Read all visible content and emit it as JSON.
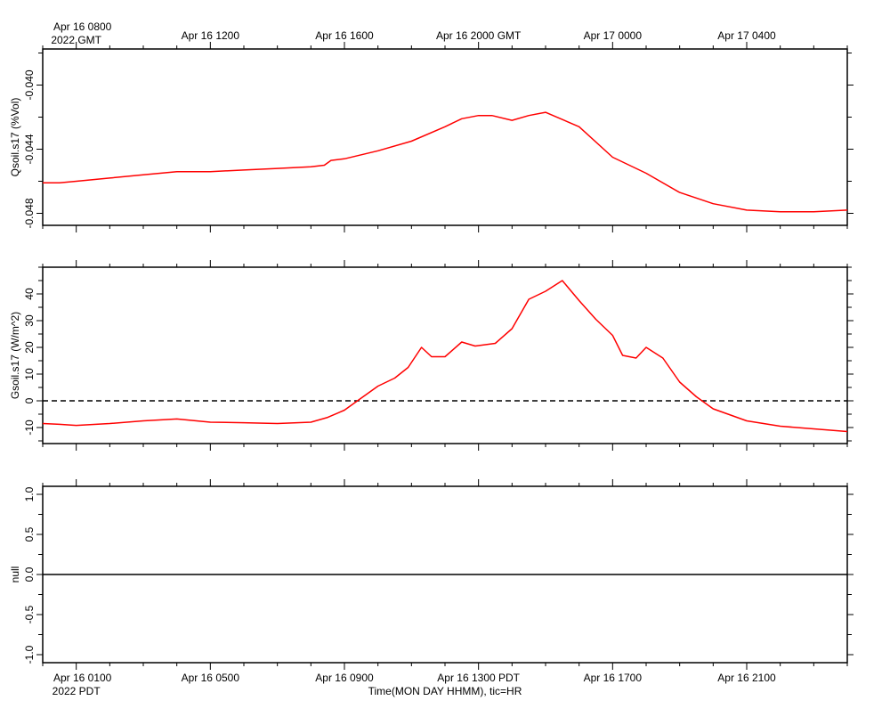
{
  "top_axis": {
    "first_label_line1": "Apr 16 0800",
    "first_label_line2": "2022 GMT",
    "labels": [
      {
        "x": 8,
        "text": "Apr 16 0800"
      },
      {
        "x": 12,
        "text": "Apr 16 1200"
      },
      {
        "x": 16,
        "text": "Apr 16 1600"
      },
      {
        "x": 20,
        "text": "Apr 16 2000 GMT"
      },
      {
        "x": 24,
        "text": "Apr 17 0000"
      },
      {
        "x": 28,
        "text": "Apr 17 0400"
      }
    ]
  },
  "bottom_axis": {
    "first_label_line1": "Apr 16 0100",
    "first_label_line2": "2022 PDT",
    "xlabel": "Time(MON DAY HHMM), tic=HR",
    "labels": [
      {
        "x": 8,
        "text": "Apr 16 0100"
      },
      {
        "x": 12,
        "text": "Apr 16 0500"
      },
      {
        "x": 16,
        "text": "Apr 16 0900"
      },
      {
        "x": 20,
        "text": "Apr 16 1300 PDT"
      },
      {
        "x": 24,
        "text": "Apr 16 1700"
      },
      {
        "x": 28,
        "text": "Apr 16 2100"
      }
    ]
  },
  "colors": {
    "series": "#ff0000",
    "axis": "#000000",
    "zero_line": "#000000"
  },
  "chart_data": [
    {
      "type": "line",
      "title": "",
      "ylabel": "Qsoil.s17 (%Vol)",
      "xlabel": "",
      "x_units": "hour GMT since Apr 16 0000",
      "xlim": [
        7,
        31
      ],
      "ylim": [
        -0.04875,
        -0.03775
      ],
      "yticks": [
        -0.048,
        -0.044,
        -0.04
      ],
      "ytick_labels": [
        "-0.048",
        "-0.044",
        "-0.040"
      ],
      "zero_line": false,
      "series": [
        {
          "x": [
            7,
            7.5,
            8,
            9,
            10,
            11,
            12,
            13,
            14,
            15,
            15.4,
            15.6,
            16,
            17,
            18,
            19,
            19.5,
            20,
            20.4,
            21,
            21.5,
            22,
            23,
            24,
            25,
            26,
            27,
            28,
            29,
            30,
            31
          ],
          "y": [
            -0.0461,
            -0.0461,
            -0.046,
            -0.0458,
            -0.0456,
            -0.0454,
            -0.0454,
            -0.0453,
            -0.0452,
            -0.0451,
            -0.045,
            -0.0447,
            -0.0446,
            -0.0441,
            -0.0435,
            -0.0426,
            -0.0421,
            -0.0419,
            -0.0419,
            -0.0422,
            -0.0419,
            -0.0417,
            -0.0426,
            -0.0445,
            -0.0455,
            -0.0467,
            -0.0474,
            -0.0478,
            -0.0479,
            -0.0479,
            -0.0478
          ]
        }
      ]
    },
    {
      "type": "line",
      "title": "",
      "ylabel": "Gsoil.s17 (W/m^2)",
      "xlabel": "",
      "x_units": "hour GMT since Apr 16 0000",
      "xlim": [
        7,
        31
      ],
      "ylim": [
        -16,
        50
      ],
      "yticks": [
        -10,
        0,
        10,
        20,
        30,
        40
      ],
      "ytick_labels": [
        "-10",
        "0",
        "10",
        "20",
        "30",
        "40"
      ],
      "zero_line": true,
      "series": [
        {
          "x": [
            7,
            7.5,
            8,
            9,
            10,
            11,
            12,
            13,
            14,
            15,
            15.5,
            16,
            16.5,
            17,
            17.5,
            17.9,
            18.3,
            18.6,
            19,
            19.5,
            19.9,
            20.5,
            21,
            21.5,
            22,
            22.5,
            23,
            23.5,
            24,
            24.3,
            24.7,
            25,
            25.5,
            26,
            26.5,
            27,
            28,
            29,
            30,
            31
          ],
          "y": [
            -8.5,
            -8.8,
            -9.2,
            -8.5,
            -7.5,
            -6.8,
            -8.0,
            -8.2,
            -8.5,
            -8.0,
            -6.2,
            -3.5,
            1.0,
            5.5,
            8.5,
            12.5,
            20.0,
            16.5,
            16.5,
            22.0,
            20.5,
            21.5,
            27.0,
            38.0,
            41.0,
            45.0,
            37.5,
            30.5,
            24.5,
            17.0,
            16.0,
            20.0,
            16.0,
            7.0,
            1.5,
            -3.0,
            -7.5,
            -9.5,
            -10.5,
            -11.5
          ]
        }
      ]
    },
    {
      "type": "line",
      "title": "",
      "ylabel": "null",
      "xlabel": "",
      "x_units": "hour GMT since Apr 16 0000",
      "xlim": [
        7,
        31
      ],
      "ylim": [
        -1.1,
        1.1
      ],
      "yticks": [
        -1.0,
        -0.5,
        0.0,
        0.5,
        1.0
      ],
      "ytick_labels": [
        "-1.0",
        "-0.5",
        "0.0",
        "0.5",
        "1.0"
      ],
      "zero_line": true,
      "series": []
    }
  ]
}
